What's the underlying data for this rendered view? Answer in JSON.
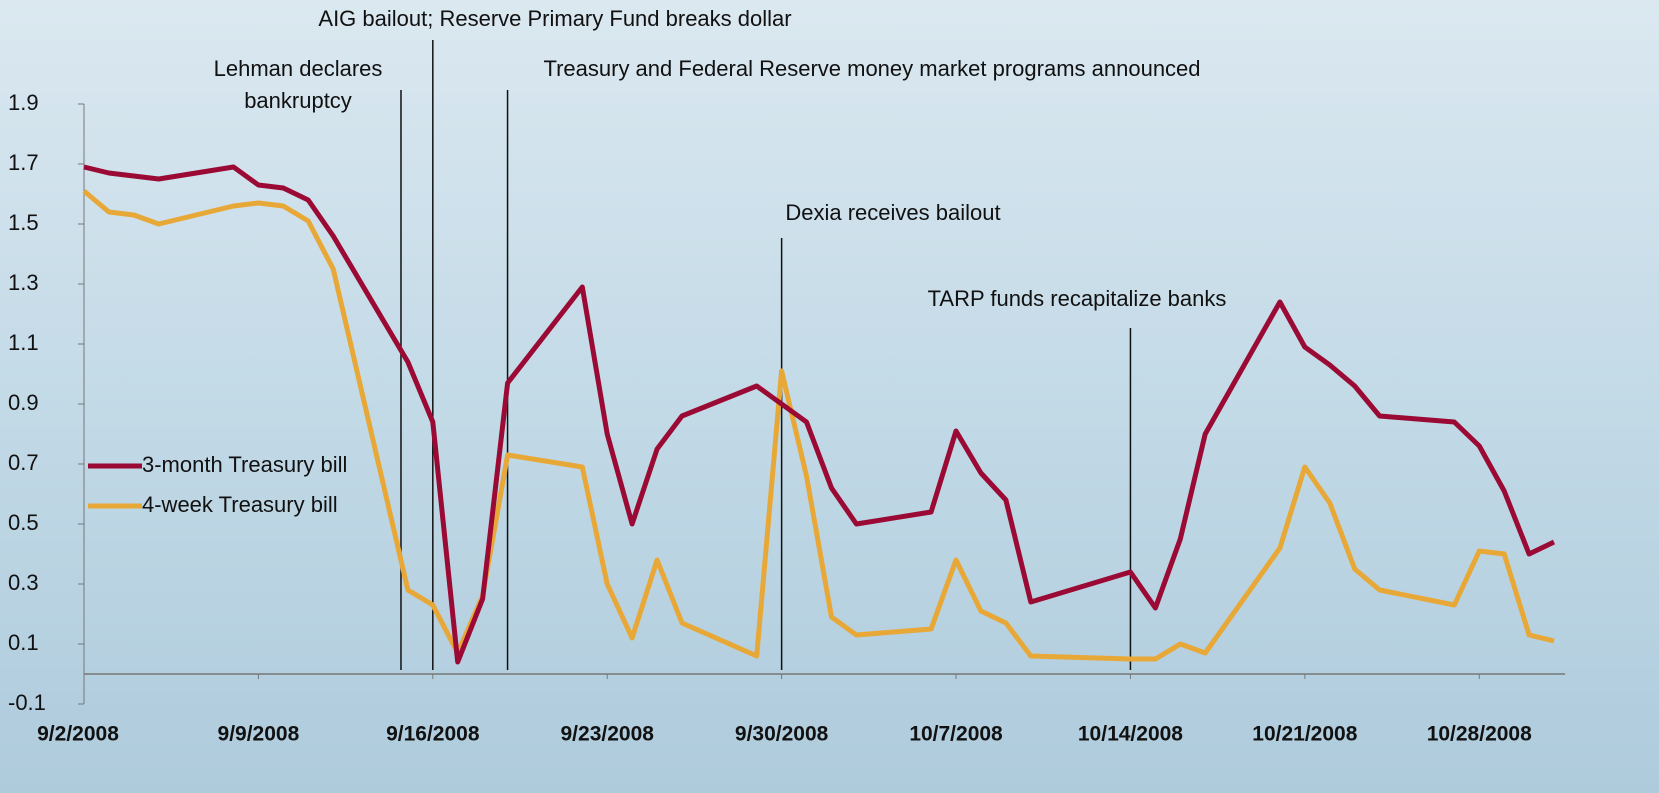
{
  "chart_data": {
    "type": "line",
    "x": [
      "9/2/2008",
      "9/3/2008",
      "9/4/2008",
      "9/5/2008",
      "9/8/2008",
      "9/9/2008",
      "9/10/2008",
      "9/11/2008",
      "9/12/2008",
      "9/15/2008",
      "9/16/2008",
      "9/17/2008",
      "9/18/2008",
      "9/19/2008",
      "9/22/2008",
      "9/23/2008",
      "9/24/2008",
      "9/25/2008",
      "9/26/2008",
      "9/29/2008",
      "9/30/2008",
      "10/1/2008",
      "10/2/2008",
      "10/3/2008",
      "10/6/2008",
      "10/7/2008",
      "10/8/2008",
      "10/9/2008",
      "10/10/2008",
      "10/14/2008",
      "10/15/2008",
      "10/16/2008",
      "10/17/2008",
      "10/20/2008",
      "10/21/2008",
      "10/22/2008",
      "10/23/2008",
      "10/24/2008",
      "10/27/2008",
      "10/28/2008",
      "10/29/2008",
      "10/30/2008",
      "10/31/2008"
    ],
    "series": [
      {
        "name": "3-month Treasury bill",
        "color": "#9b0a34",
        "values": [
          1.69,
          1.67,
          1.66,
          1.65,
          1.69,
          1.63,
          1.62,
          1.58,
          1.46,
          1.04,
          0.84,
          0.04,
          0.25,
          0.97,
          1.29,
          0.8,
          0.5,
          0.75,
          0.86,
          0.96,
          0.9,
          0.84,
          0.62,
          0.5,
          0.54,
          0.81,
          0.67,
          0.58,
          0.24,
          0.34,
          0.22,
          0.45,
          0.8,
          1.24,
          1.09,
          1.03,
          0.96,
          0.86,
          0.84,
          0.76,
          0.61,
          0.4,
          0.44
        ]
      },
      {
        "name": "4-week Treasury bill",
        "color": "#e8a838",
        "values": [
          1.61,
          1.54,
          1.53,
          1.5,
          1.56,
          1.57,
          1.56,
          1.51,
          1.35,
          0.28,
          0.23,
          0.07,
          0.26,
          0.73,
          0.69,
          0.3,
          0.12,
          0.38,
          0.17,
          0.06,
          1.01,
          0.66,
          0.19,
          0.13,
          0.15,
          0.38,
          0.21,
          0.17,
          0.06,
          0.05,
          0.05,
          0.1,
          0.07,
          0.42,
          0.69,
          0.57,
          0.35,
          0.28,
          0.23,
          0.41,
          0.4,
          0.13,
          0.11
        ]
      }
    ],
    "xlim": [
      "9/2/2008",
      "10/31/2008"
    ],
    "xticks": [
      "9/2/2008",
      "9/9/2008",
      "9/16/2008",
      "9/23/2008",
      "9/30/2008",
      "10/7/2008",
      "10/14/2008",
      "10/21/2008",
      "10/28/2008"
    ],
    "ylim": [
      -0.1,
      1.9
    ],
    "yticks": [
      -0.1,
      0.1,
      0.3,
      0.5,
      0.7,
      0.9,
      1.1,
      1.3,
      1.5,
      1.7,
      1.9
    ],
    "annotations": [
      {
        "text": [
          "Lehman declares",
          "bankruptcy"
        ],
        "x": "9/14/2008"
      },
      {
        "text": [
          "AIG bailout; Reserve Primary Fund breaks dollar"
        ],
        "x": "9/16/2008"
      },
      {
        "text": [
          "Treasury and Federal Reserve money market programs announced"
        ],
        "x": "9/19/2008"
      },
      {
        "text": [
          "Dexia receives bailout"
        ],
        "x": "9/30/2008"
      },
      {
        "text": [
          "TARP funds recapitalize banks"
        ],
        "x": "10/14/2008"
      }
    ],
    "legend": "left"
  }
}
